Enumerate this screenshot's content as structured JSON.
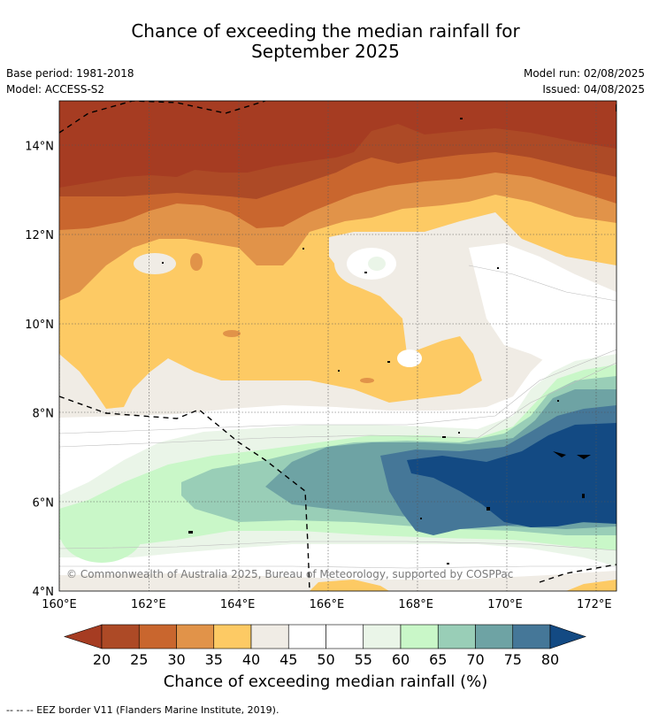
{
  "title": {
    "line1": "Chance of exceeding the median rainfall for",
    "line2": "September 2025"
  },
  "meta": {
    "base_period": "Base period: 1981-2018",
    "model": "Model: ACCESS-S2",
    "model_run": "Model run: 02/08/2025",
    "issued": "Issued: 04/08/2025"
  },
  "map": {
    "x_ticks": [
      "160°E",
      "162°E",
      "164°E",
      "166°E",
      "168°E",
      "170°E",
      "172°E"
    ],
    "y_ticks": [
      "14°N",
      "12°N",
      "10°N",
      "8°N",
      "6°N",
      "4°N"
    ],
    "copyright": "© Commonwealth of Australia 2025, Bureau of Meteorology, supported by COSPPac",
    "lon_range": [
      160,
      172.5
    ],
    "lat_range": [
      4,
      15
    ]
  },
  "colorbar": {
    "ticks": [
      "20",
      "25",
      "30",
      "35",
      "40",
      "45",
      "50",
      "55",
      "60",
      "65",
      "70",
      "75",
      "80"
    ],
    "low_extend_color": "#a63c22",
    "high_extend_color": "#134a83",
    "colors": [
      "#ad4a26",
      "#c9662e",
      "#e19349",
      "#fdca64",
      "#f0ece5",
      "#ffffff",
      "#ffffff",
      "#eaf5e8",
      "#c9f7c8",
      "#99ceb7",
      "#6ea3a4",
      "#457798"
    ],
    "title": "Chance of exceeding median rainfall (%)"
  },
  "footnote": "--  --  -- EEZ border V11 (Flanders Marine Institute, 2019)."
}
